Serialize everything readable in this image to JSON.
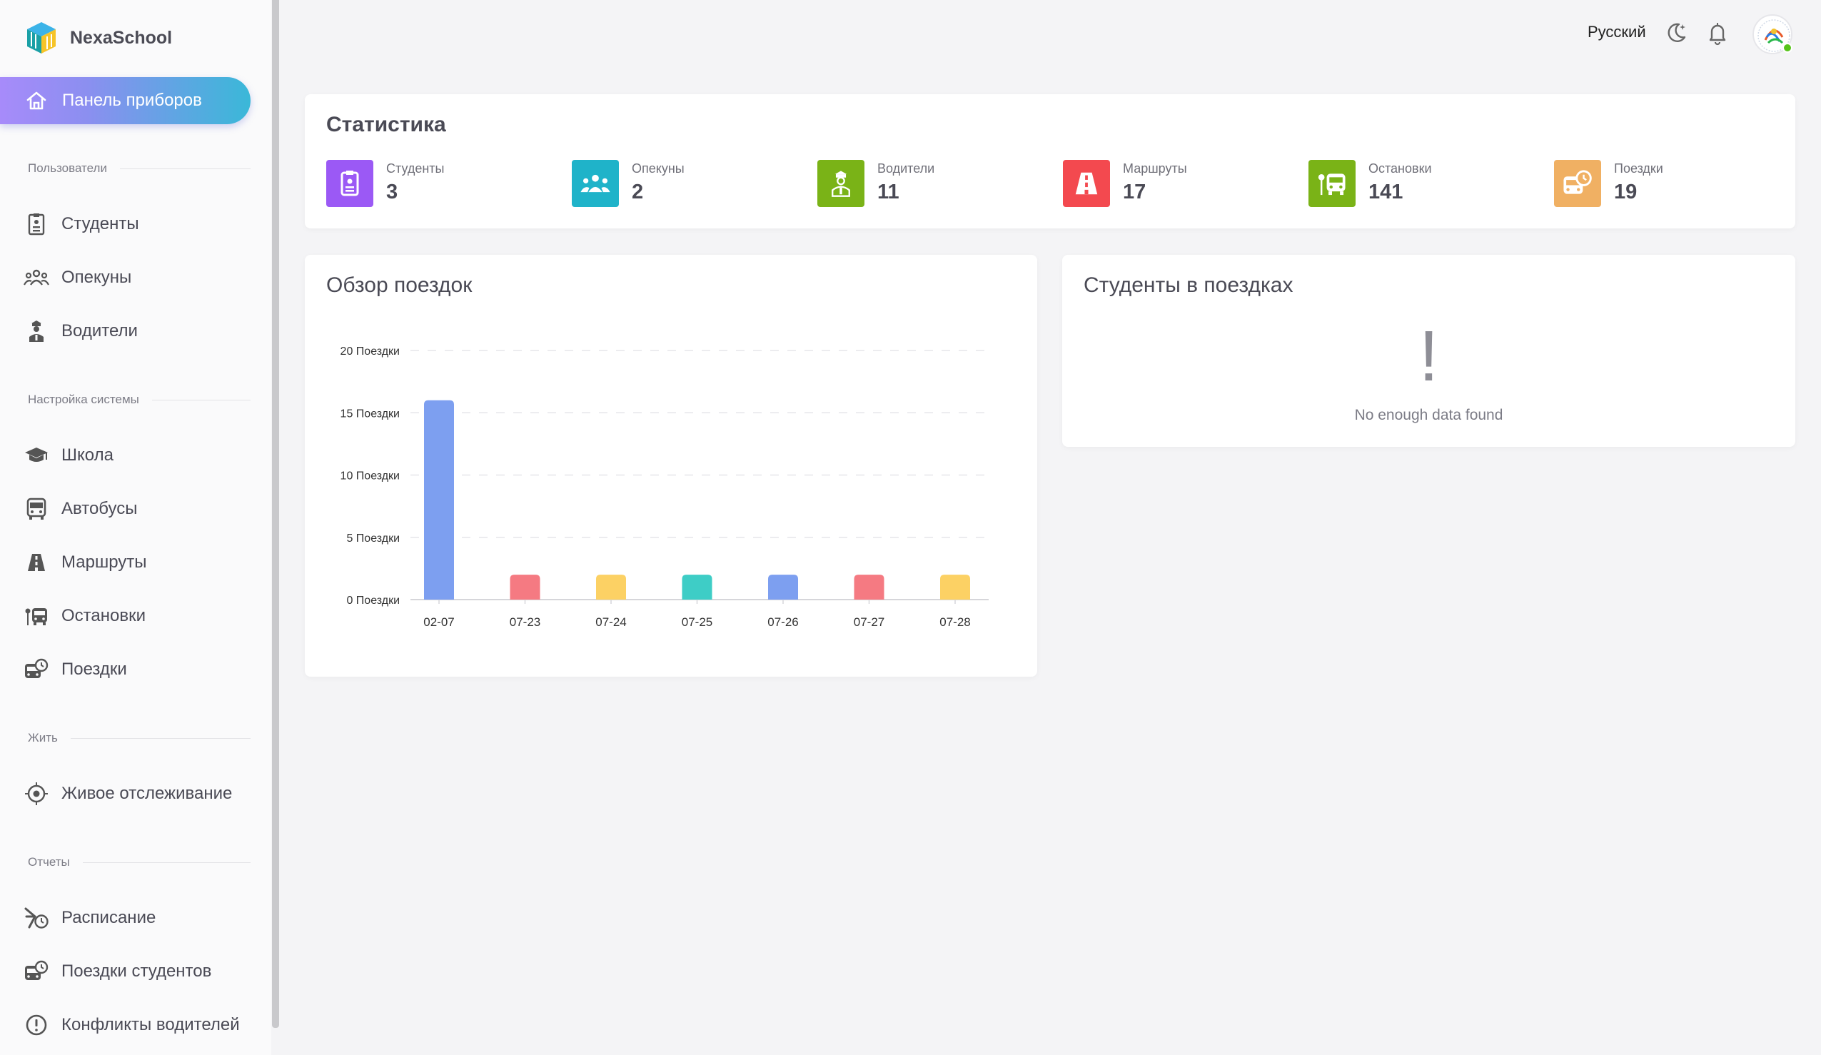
{
  "brand": {
    "name": "NexaSchool"
  },
  "sidebar": {
    "active": {
      "label": "Панель приборов",
      "icon": "home-icon"
    },
    "sections": [
      {
        "title": "Пользователи",
        "items": [
          {
            "label": "Студенты",
            "icon": "student-badge-icon"
          },
          {
            "label": "Опекуны",
            "icon": "guardians-icon"
          },
          {
            "label": "Водители",
            "icon": "driver-icon"
          }
        ]
      },
      {
        "title": "Настройка системы",
        "items": [
          {
            "label": "Школа",
            "icon": "graduation-cap-icon"
          },
          {
            "label": "Автобусы",
            "icon": "bus-icon"
          },
          {
            "label": "Маршруты",
            "icon": "road-icon"
          },
          {
            "label": "Остановки",
            "icon": "bus-stop-icon"
          },
          {
            "label": "Поездки",
            "icon": "bus-clock-icon"
          }
        ]
      },
      {
        "title": "Жить",
        "items": [
          {
            "label": "Живое отслеживание",
            "icon": "crosshair-icon"
          }
        ]
      },
      {
        "title": "Отчеты",
        "items": [
          {
            "label": "Расписание",
            "icon": "schedule-icon"
          },
          {
            "label": "Поездки студентов",
            "icon": "bus-clock-icon"
          },
          {
            "label": "Конфликты водителей",
            "icon": "alert-circle-icon"
          }
        ]
      }
    ]
  },
  "topbar": {
    "language": "Русский"
  },
  "stats": {
    "title": "Статистика",
    "items": [
      {
        "label": "Студенты",
        "value": "3",
        "color": "#9b59f5",
        "icon": "student-badge-icon"
      },
      {
        "label": "Опекуны",
        "value": "2",
        "color": "#1fb3c9",
        "icon": "guardians-icon"
      },
      {
        "label": "Водители",
        "value": "11",
        "color": "#7ab317",
        "icon": "driver-icon"
      },
      {
        "label": "Маршруты",
        "value": "17",
        "color": "#f3494f",
        "icon": "road-icon"
      },
      {
        "label": "Остановки",
        "value": "141",
        "color": "#7ab317",
        "icon": "bus-stop-icon"
      },
      {
        "label": "Поездки",
        "value": "19",
        "color": "#f0b063",
        "icon": "bus-clock-icon"
      }
    ]
  },
  "trips_overview": {
    "title": "Обзор поездок",
    "chart_data": {
      "type": "bar",
      "categories": [
        "02-07",
        "07-23",
        "07-24",
        "07-25",
        "07-26",
        "07-27",
        "07-28"
      ],
      "values": [
        16,
        2,
        2,
        2,
        2,
        2,
        2
      ],
      "colors": [
        "#7d9ff0",
        "#f57a82",
        "#fcd164",
        "#3ecdc6",
        "#7d9ff0",
        "#f57a82",
        "#fcd164"
      ],
      "y_ticks": [
        0,
        5,
        10,
        15,
        20
      ],
      "y_tick_labels": [
        "0 Поездки",
        "5 Поездки",
        "10 Поездки",
        "15 Поездки",
        "20 Поездки"
      ],
      "ylim": [
        0,
        20
      ],
      "grid": true
    }
  },
  "students_trips": {
    "title": "Студенты в поездках",
    "empty_mark": "!",
    "empty_text": "No enough data found"
  }
}
